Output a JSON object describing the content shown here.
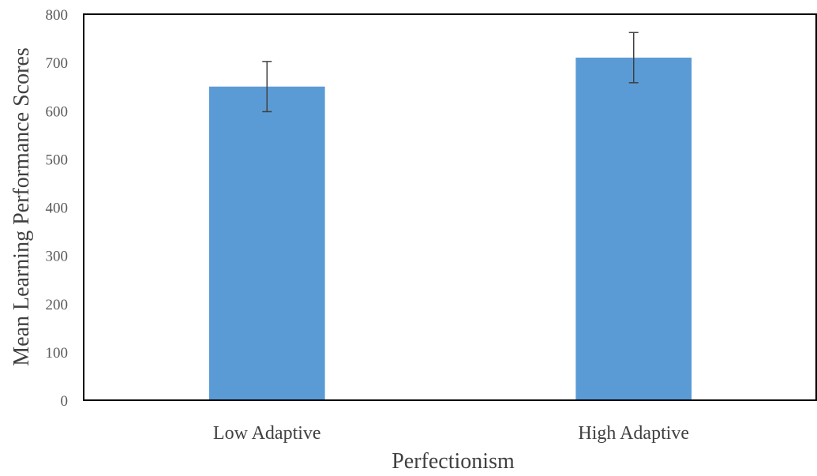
{
  "chart_data": {
    "type": "bar",
    "title": "",
    "xlabel": "Perfectionism",
    "ylabel": "Mean Learning Performance Scores",
    "categories": [
      "Low Adaptive",
      "High Adaptive"
    ],
    "values": [
      650,
      710
    ],
    "error": [
      52,
      52
    ],
    "ylim": [
      0,
      800
    ],
    "yticks": [
      0,
      100,
      200,
      300,
      400,
      500,
      600,
      700,
      800
    ],
    "grid": false,
    "legend": "none",
    "bar_color": "#5b9bd5",
    "error_color": "#404040"
  }
}
